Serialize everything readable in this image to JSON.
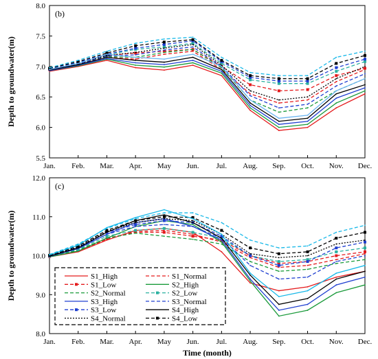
{
  "chart_data": [
    {
      "type": "line",
      "panel_label": "(b)",
      "ylabel": "Depth to groundwater(m)",
      "xlabel": "",
      "categories": [
        "Jan.",
        "Feb.",
        "Mar.",
        "Apr.",
        "May",
        "Jun.",
        "Jul.",
        "Aug.",
        "Sep.",
        "Oct.",
        "Nov.",
        "Dec."
      ],
      "ylim": [
        5.5,
        8.0
      ],
      "yticks": [
        "5.5",
        "6.0",
        "6.5",
        "7.0",
        "7.5",
        "8.0"
      ],
      "series": [
        {
          "name": "S1_High",
          "color": "#e41a1c",
          "style": "solid",
          "values": [
            6.92,
            7.0,
            7.1,
            6.98,
            6.94,
            7.02,
            6.85,
            6.28,
            5.95,
            6.0,
            6.32,
            6.55
          ]
        },
        {
          "name": "S1_Normal",
          "color": "#e41a1c",
          "style": "dash",
          "values": [
            6.94,
            7.02,
            7.15,
            7.12,
            7.2,
            7.25,
            6.95,
            6.55,
            6.4,
            6.45,
            6.75,
            6.95
          ]
        },
        {
          "name": "S1_Low",
          "color": "#e41a1c",
          "style": "dashmarker",
          "values": [
            6.95,
            7.05,
            7.18,
            7.22,
            7.25,
            7.28,
            7.0,
            6.7,
            6.6,
            6.62,
            6.85,
            6.97
          ]
        },
        {
          "name": "S2_High",
          "color": "#1a9a3a",
          "style": "solid",
          "values": [
            6.93,
            7.01,
            7.12,
            7.02,
            6.99,
            7.06,
            6.89,
            6.32,
            6.0,
            6.05,
            6.4,
            6.6
          ]
        },
        {
          "name": "S2_Normal",
          "color": "#1a9a3a",
          "style": "dash",
          "values": [
            6.95,
            7.03,
            7.16,
            7.15,
            7.23,
            7.28,
            6.98,
            6.45,
            6.25,
            6.32,
            6.6,
            6.8
          ]
        },
        {
          "name": "S2_Low",
          "color": "#2ab0a0",
          "style": "dashmarker",
          "values": [
            6.96,
            7.06,
            7.19,
            7.28,
            7.32,
            7.38,
            7.05,
            6.78,
            6.72,
            6.72,
            6.92,
            7.08
          ]
        },
        {
          "name": "S3_High",
          "color": "#1f3fd0",
          "style": "solid",
          "values": [
            6.93,
            7.02,
            7.13,
            7.06,
            7.03,
            7.1,
            6.92,
            6.36,
            6.05,
            6.1,
            6.48,
            6.65
          ]
        },
        {
          "name": "S3_Normal",
          "color": "#1f3fd0",
          "style": "dash",
          "values": [
            6.95,
            7.04,
            7.17,
            7.19,
            7.27,
            7.32,
            7.0,
            6.52,
            6.32,
            6.38,
            6.68,
            6.88
          ]
        },
        {
          "name": "S3_Low",
          "color": "#1f3fd0",
          "style": "dashmarker",
          "values": [
            6.96,
            7.07,
            7.2,
            7.3,
            7.36,
            7.42,
            7.08,
            6.82,
            6.76,
            6.76,
            6.98,
            7.12
          ]
        },
        {
          "name": "S4_High",
          "color": "#000000",
          "style": "solid",
          "values": [
            6.94,
            7.03,
            7.15,
            7.1,
            7.07,
            7.15,
            6.95,
            6.4,
            6.1,
            6.15,
            6.55,
            6.7
          ]
        },
        {
          "name": "S4_Normal",
          "color": "#000000",
          "style": "dot",
          "values": [
            6.95,
            7.05,
            7.18,
            7.23,
            7.3,
            7.36,
            7.02,
            6.6,
            6.45,
            6.5,
            6.8,
            7.0
          ]
        },
        {
          "name": "S4_Low",
          "color": "#000000",
          "style": "dashmarker",
          "values": [
            6.97,
            7.08,
            7.22,
            7.34,
            7.4,
            7.44,
            7.1,
            6.85,
            6.8,
            6.8,
            7.05,
            7.18
          ]
        },
        {
          "name": "",
          "color": "#6ab4f0",
          "style": "solid",
          "values": [
            6.95,
            7.05,
            7.2,
            7.15,
            7.12,
            7.2,
            7.0,
            6.45,
            6.15,
            6.2,
            6.6,
            6.8
          ]
        },
        {
          "name": "",
          "color": "#17b8e8",
          "style": "dash",
          "values": [
            6.98,
            7.1,
            7.25,
            7.38,
            7.45,
            7.48,
            7.15,
            6.9,
            6.85,
            6.85,
            7.15,
            7.25
          ]
        }
      ]
    },
    {
      "type": "line",
      "panel_label": "(c)",
      "ylabel": "Depth to groundwater(m)",
      "xlabel": "Time (month)",
      "categories": [
        "Jan.",
        "Feb.",
        "Mar.",
        "Apr.",
        "May",
        "Jun.",
        "Jul.",
        "Aug.",
        "Sep.",
        "Oct.",
        "Nov.",
        "Dec."
      ],
      "ylim": [
        8.0,
        12.0
      ],
      "yticks": [
        "8.0",
        "9.0",
        "10.0",
        "11.0",
        "12.0"
      ],
      "series": [
        {
          "name": "S1_High",
          "color": "#e41a1c",
          "style": "solid",
          "values": [
            9.97,
            10.1,
            10.4,
            10.65,
            10.7,
            10.6,
            10.1,
            9.3,
            9.1,
            9.2,
            9.45,
            9.6
          ]
        },
        {
          "name": "S1_Normal",
          "color": "#e41a1c",
          "style": "dash",
          "values": [
            9.98,
            10.12,
            10.42,
            10.62,
            10.65,
            10.55,
            10.35,
            9.95,
            9.7,
            9.75,
            9.9,
            10.05
          ]
        },
        {
          "name": "S1_Low",
          "color": "#e41a1c",
          "style": "dashmarker",
          "values": [
            9.98,
            10.13,
            10.45,
            10.6,
            10.6,
            10.5,
            10.4,
            10.0,
            9.8,
            9.85,
            10.0,
            10.1
          ]
        },
        {
          "name": "S2_High",
          "color": "#1a9a3a",
          "style": "solid",
          "values": [
            9.97,
            10.12,
            10.45,
            10.75,
            10.9,
            10.8,
            10.35,
            9.35,
            8.45,
            8.6,
            9.05,
            9.25
          ]
        },
        {
          "name": "S2_Normal",
          "color": "#1a9a3a",
          "style": "dash",
          "values": [
            9.98,
            10.14,
            10.45,
            10.58,
            10.5,
            10.42,
            10.3,
            9.85,
            9.6,
            9.65,
            9.8,
            9.9
          ]
        },
        {
          "name": "S2_Low",
          "color": "#2ab0a0",
          "style": "dashmarker",
          "values": [
            9.99,
            10.16,
            10.5,
            10.65,
            10.7,
            10.6,
            10.45,
            10.0,
            9.85,
            9.9,
            10.1,
            10.2
          ]
        },
        {
          "name": "S3_High",
          "color": "#1f3fd0",
          "style": "solid",
          "values": [
            9.98,
            10.18,
            10.55,
            10.85,
            10.95,
            10.75,
            10.4,
            9.4,
            8.6,
            8.75,
            9.25,
            9.45
          ]
        },
        {
          "name": "S3_Normal",
          "color": "#1f3fd0",
          "style": "dash",
          "values": [
            9.99,
            10.2,
            10.55,
            10.75,
            10.8,
            10.75,
            10.45,
            9.75,
            9.4,
            9.45,
            9.85,
            10.0
          ]
        },
        {
          "name": "S3_Low",
          "color": "#1f3fd0",
          "style": "dashmarker",
          "values": [
            10.0,
            10.22,
            10.6,
            10.8,
            10.9,
            10.85,
            10.5,
            10.0,
            9.75,
            9.85,
            10.2,
            10.35
          ]
        },
        {
          "name": "S4_High",
          "color": "#000000",
          "style": "solid",
          "values": [
            9.99,
            10.2,
            10.6,
            10.9,
            11.05,
            10.85,
            10.45,
            9.5,
            8.75,
            8.9,
            9.4,
            9.6
          ]
        },
        {
          "name": "S4_Normal",
          "color": "#000000",
          "style": "dot",
          "values": [
            10.0,
            10.22,
            10.62,
            10.85,
            10.95,
            10.9,
            10.55,
            10.05,
            9.95,
            10.0,
            10.3,
            10.4
          ]
        },
        {
          "name": "S4_Low",
          "color": "#000000",
          "style": "dashmarker",
          "values": [
            10.01,
            10.25,
            10.65,
            10.9,
            11.0,
            10.98,
            10.65,
            10.2,
            10.05,
            10.1,
            10.45,
            10.6
          ]
        },
        {
          "name": "",
          "color": "#17b8e8",
          "style": "solid",
          "values": [
            10.02,
            10.27,
            10.72,
            10.98,
            11.18,
            10.95,
            10.55,
            9.55,
            8.95,
            9.1,
            9.55,
            9.75
          ]
        },
        {
          "name": "",
          "color": "#17b8e8",
          "style": "dash",
          "values": [
            10.03,
            10.3,
            10.7,
            10.95,
            11.1,
            11.1,
            10.85,
            10.4,
            10.2,
            10.25,
            10.6,
            10.78
          ]
        }
      ],
      "legend": {
        "placement": "bottom-left",
        "entries": [
          "S1_High",
          "S1_Normal",
          "S1_Low",
          "S2_High",
          "S2_Normal",
          "S2_Low",
          "S3_High",
          "S3_Normal",
          "S3_Low",
          "S4_High",
          "S4_Normal",
          "S4_Low"
        ]
      }
    }
  ]
}
